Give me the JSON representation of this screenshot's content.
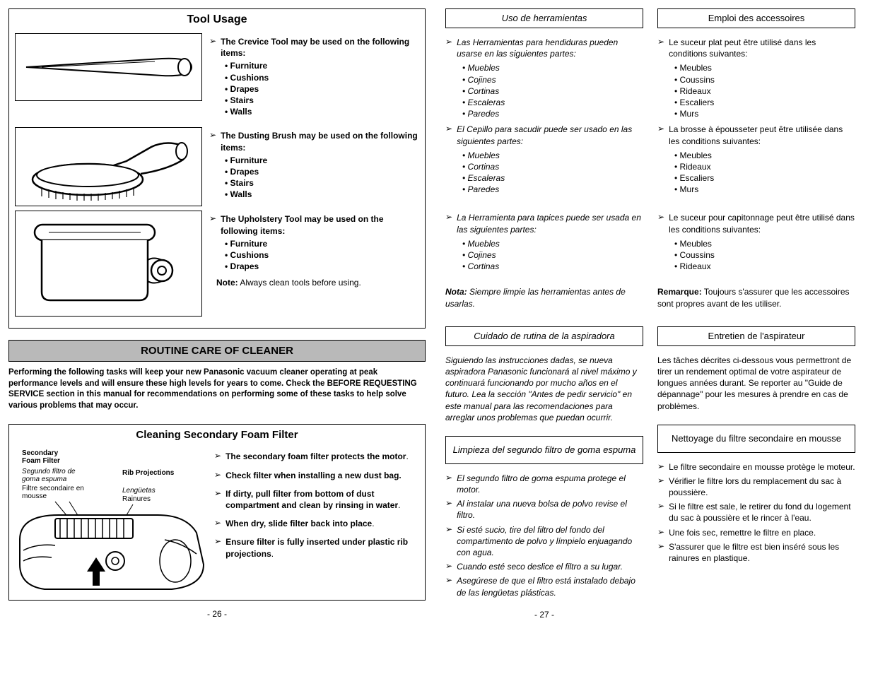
{
  "left": {
    "tool_usage": {
      "title": "Tool Usage",
      "crevice": {
        "lead": "The Crevice Tool may be used on the following items:",
        "items": [
          "Furniture",
          "Cushions",
          "Drapes",
          "Stairs",
          "Walls"
        ]
      },
      "dusting": {
        "lead": "The Dusting Brush may be used on the following items:",
        "items": [
          "Furniture",
          "Drapes",
          "Stairs",
          "Walls"
        ]
      },
      "upholstery": {
        "lead": "The Upholstery Tool may be used on the following items:",
        "items": [
          "Furniture",
          "Cushions",
          "Drapes"
        ]
      },
      "note_bold": "Note:",
      "note_text": " Always clean tools before using."
    },
    "routine": {
      "title": "ROUTINE CARE OF CLEANER",
      "intro": "Performing the following tasks will keep your new Panasonic vacuum cleaner operating at peak performance levels and will ensure these high levels for years to come. Check the BEFORE REQUESTING SERVICE section in this manual for recommendations on performing some of these tasks to help solve various problems that may occur."
    },
    "secondary": {
      "title": "Cleaning Secondary Foam Filter",
      "diag_labels": {
        "foam_en": "Secondary Foam Filter",
        "foam_es": "Segundo filtro de goma espuma",
        "foam_fr": "Filtre secondaire en mousse",
        "rib_en": "Rib Projections",
        "rib_es": "Lengüetas",
        "rib_fr": "Rainures"
      },
      "items": [
        {
          "bold": "The secondary foam filter protects the motor",
          "plain": "."
        },
        {
          "bold": "Check filter when installing a new dust bag.",
          "plain": ""
        },
        {
          "bold": "If dirty, pull filter from bottom of dust compartment and clean by rinsing in water",
          "plain": "."
        },
        {
          "bold": "When dry, slide filter back into place",
          "plain": "."
        },
        {
          "bold": "Ensure filter is fully inserted under plastic rib projections",
          "plain": "."
        }
      ]
    },
    "page_num": "- 26 -"
  },
  "es": {
    "tool_title": "Uso de herramientas",
    "crevice_lead": "Las Herramientas para hendiduras pueden usarse en las siguientes partes:",
    "crevice_items": [
      "Muebles",
      "Cojines",
      "Cortinas",
      "Escaleras",
      "Paredes"
    ],
    "dusting_lead": "El Cepillo para sacudir puede ser usado en las siguientes partes:",
    "dusting_items": [
      "Muebles",
      "Cortinas",
      "Escaleras",
      "Paredes"
    ],
    "uphol_lead": "La Herramienta para tapices puede ser usada en las siguientes partes:",
    "uphol_items": [
      "Muebles",
      "Cojines",
      "Cortinas"
    ],
    "note_bold": "Nota:",
    "note_text": " Siempre limpie las herramientas antes de usarlas.",
    "routine_title": "Cuidado de rutina de la aspiradora",
    "routine_intro": "Siguiendo las instrucciones dadas, se nueva aspiradora Panasonic funcionará al nivel máximo y continuará funcionando por mucho años en el futuro. Lea la sección \"Antes de pedir servicio\" en este manual para las recomendaciones para arreglar unos problemas que puedan ocurrir.",
    "secondary_title": "Limpieza del segundo filtro de goma espuma",
    "secondary_items": [
      "El segundo filtro de goma espuma protege el motor.",
      "Al instalar una nueva bolsa de polvo revise el filtro.",
      "Si esté sucio, tire del filtro del fondo del compartimento de polvo y límpielo enjuagando con agua.",
      "Cuando esté seco deslice el filtro a su lugar.",
      "Asegúrese de que el filtro está instalado debajo de las lengüetas plásticas."
    ],
    "page_num": "- 27 -"
  },
  "fr": {
    "tool_title": "Emploi des accessoires",
    "crevice_lead": "Le suceur plat peut être utilisé dans les conditions suivantes:",
    "crevice_items": [
      "Meubles",
      "Coussins",
      "Rideaux",
      "Escaliers",
      "Murs"
    ],
    "dusting_lead": "La brosse à épousseter peut être utilisée dans les conditions suivantes:",
    "dusting_items": [
      "Meubles",
      "Rideaux",
      "Escaliers",
      "Murs"
    ],
    "uphol_lead": "Le suceur pour capitonnage peut être utilisé dans les conditions suivantes:",
    "uphol_items": [
      "Meubles",
      "Coussins",
      "Rideaux"
    ],
    "note_bold": "Remarque:",
    "note_text": " Toujours s'assurer que les accessoires sont propres avant de les utiliser.",
    "routine_title": "Entretien de l'aspirateur",
    "routine_intro": "Les tâches décrites ci-dessous vous permettront de tirer un rendement optimal de votre aspirateur de longues années durant. Se reporter au \"Guide de dépannage\" pour les mesures à prendre en cas de problèmes.",
    "secondary_title": "Nettoyage du filtre secondaire en mousse",
    "secondary_items": [
      "Le filtre secondaire en mousse protège le moteur.",
      "Vérifier le filtre lors du remplacement du sac à poussière.",
      "Si le filtre est sale, le retirer du fond du logement du sac à poussière et le rincer à l'eau.",
      "Une fois sec, remettre le filtre en place.",
      "S'assurer que le filtre est bien inséré sous les rainures en plastique."
    ]
  },
  "style": {
    "arrow_glyph": "➢",
    "routine_bg": "#b9b9b9",
    "border_color": "#000000"
  }
}
